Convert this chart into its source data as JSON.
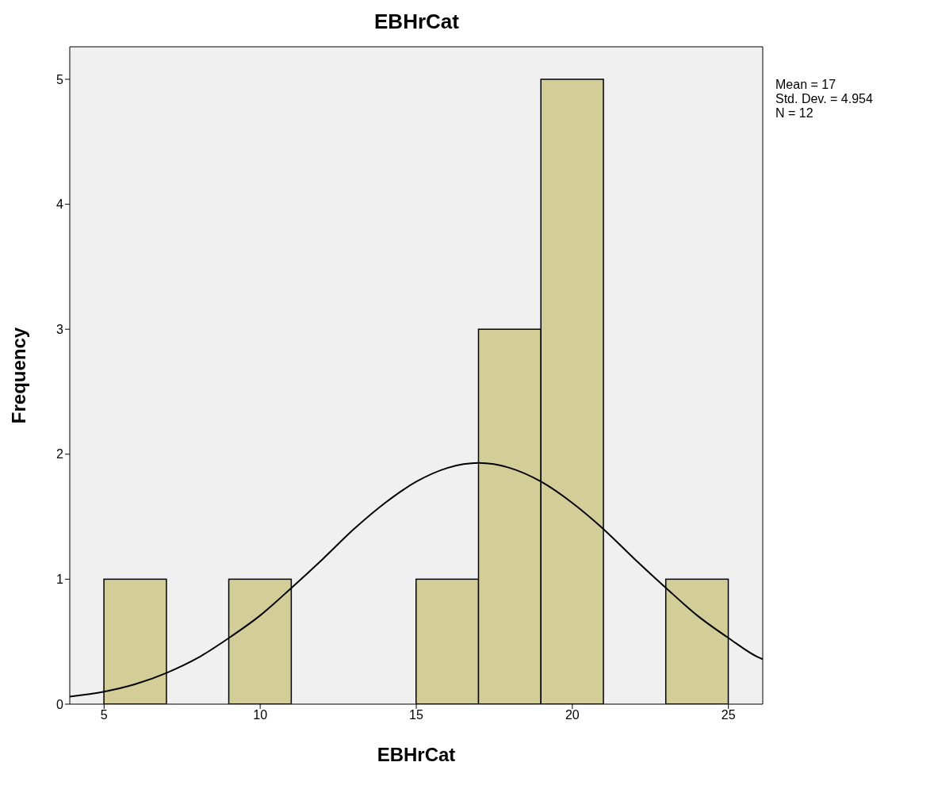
{
  "chart_data": {
    "type": "histogram",
    "title": "EBHrCat",
    "xlabel": "EBHrCat",
    "ylabel": "Frequency",
    "bins": [
      5,
      7,
      9,
      11,
      13,
      15,
      17,
      19,
      21,
      23,
      25
    ],
    "values": [
      1,
      0,
      1,
      0,
      0,
      1,
      3,
      5,
      0,
      1
    ],
    "color": "#d3ce97",
    "xlim": [
      3.9,
      26.1
    ],
    "xticks": [
      5,
      10,
      15,
      20,
      25
    ],
    "ylim": [
      0,
      5.26
    ],
    "yticks": [
      0,
      1,
      2,
      3,
      4,
      5
    ],
    "series": [
      {
        "type": "line",
        "color": "#000000",
        "x": [
          3.9,
          5,
          6,
          7,
          8,
          9,
          10,
          11,
          12,
          13,
          14,
          15,
          16,
          17,
          18,
          19,
          20,
          21,
          22,
          23,
          24,
          25,
          26,
          26.1
        ],
        "values": [
          0.06,
          0.1,
          0.16,
          0.25,
          0.37,
          0.53,
          0.71,
          0.93,
          1.16,
          1.4,
          1.61,
          1.78,
          1.89,
          1.93,
          1.89,
          1.78,
          1.61,
          1.4,
          1.16,
          0.93,
          0.71,
          0.53,
          0.37,
          0.36
        ]
      }
    ],
    "annotations": [
      "Mean = 17",
      "Std. Dev. = 4.954",
      "N = 12"
    ]
  }
}
